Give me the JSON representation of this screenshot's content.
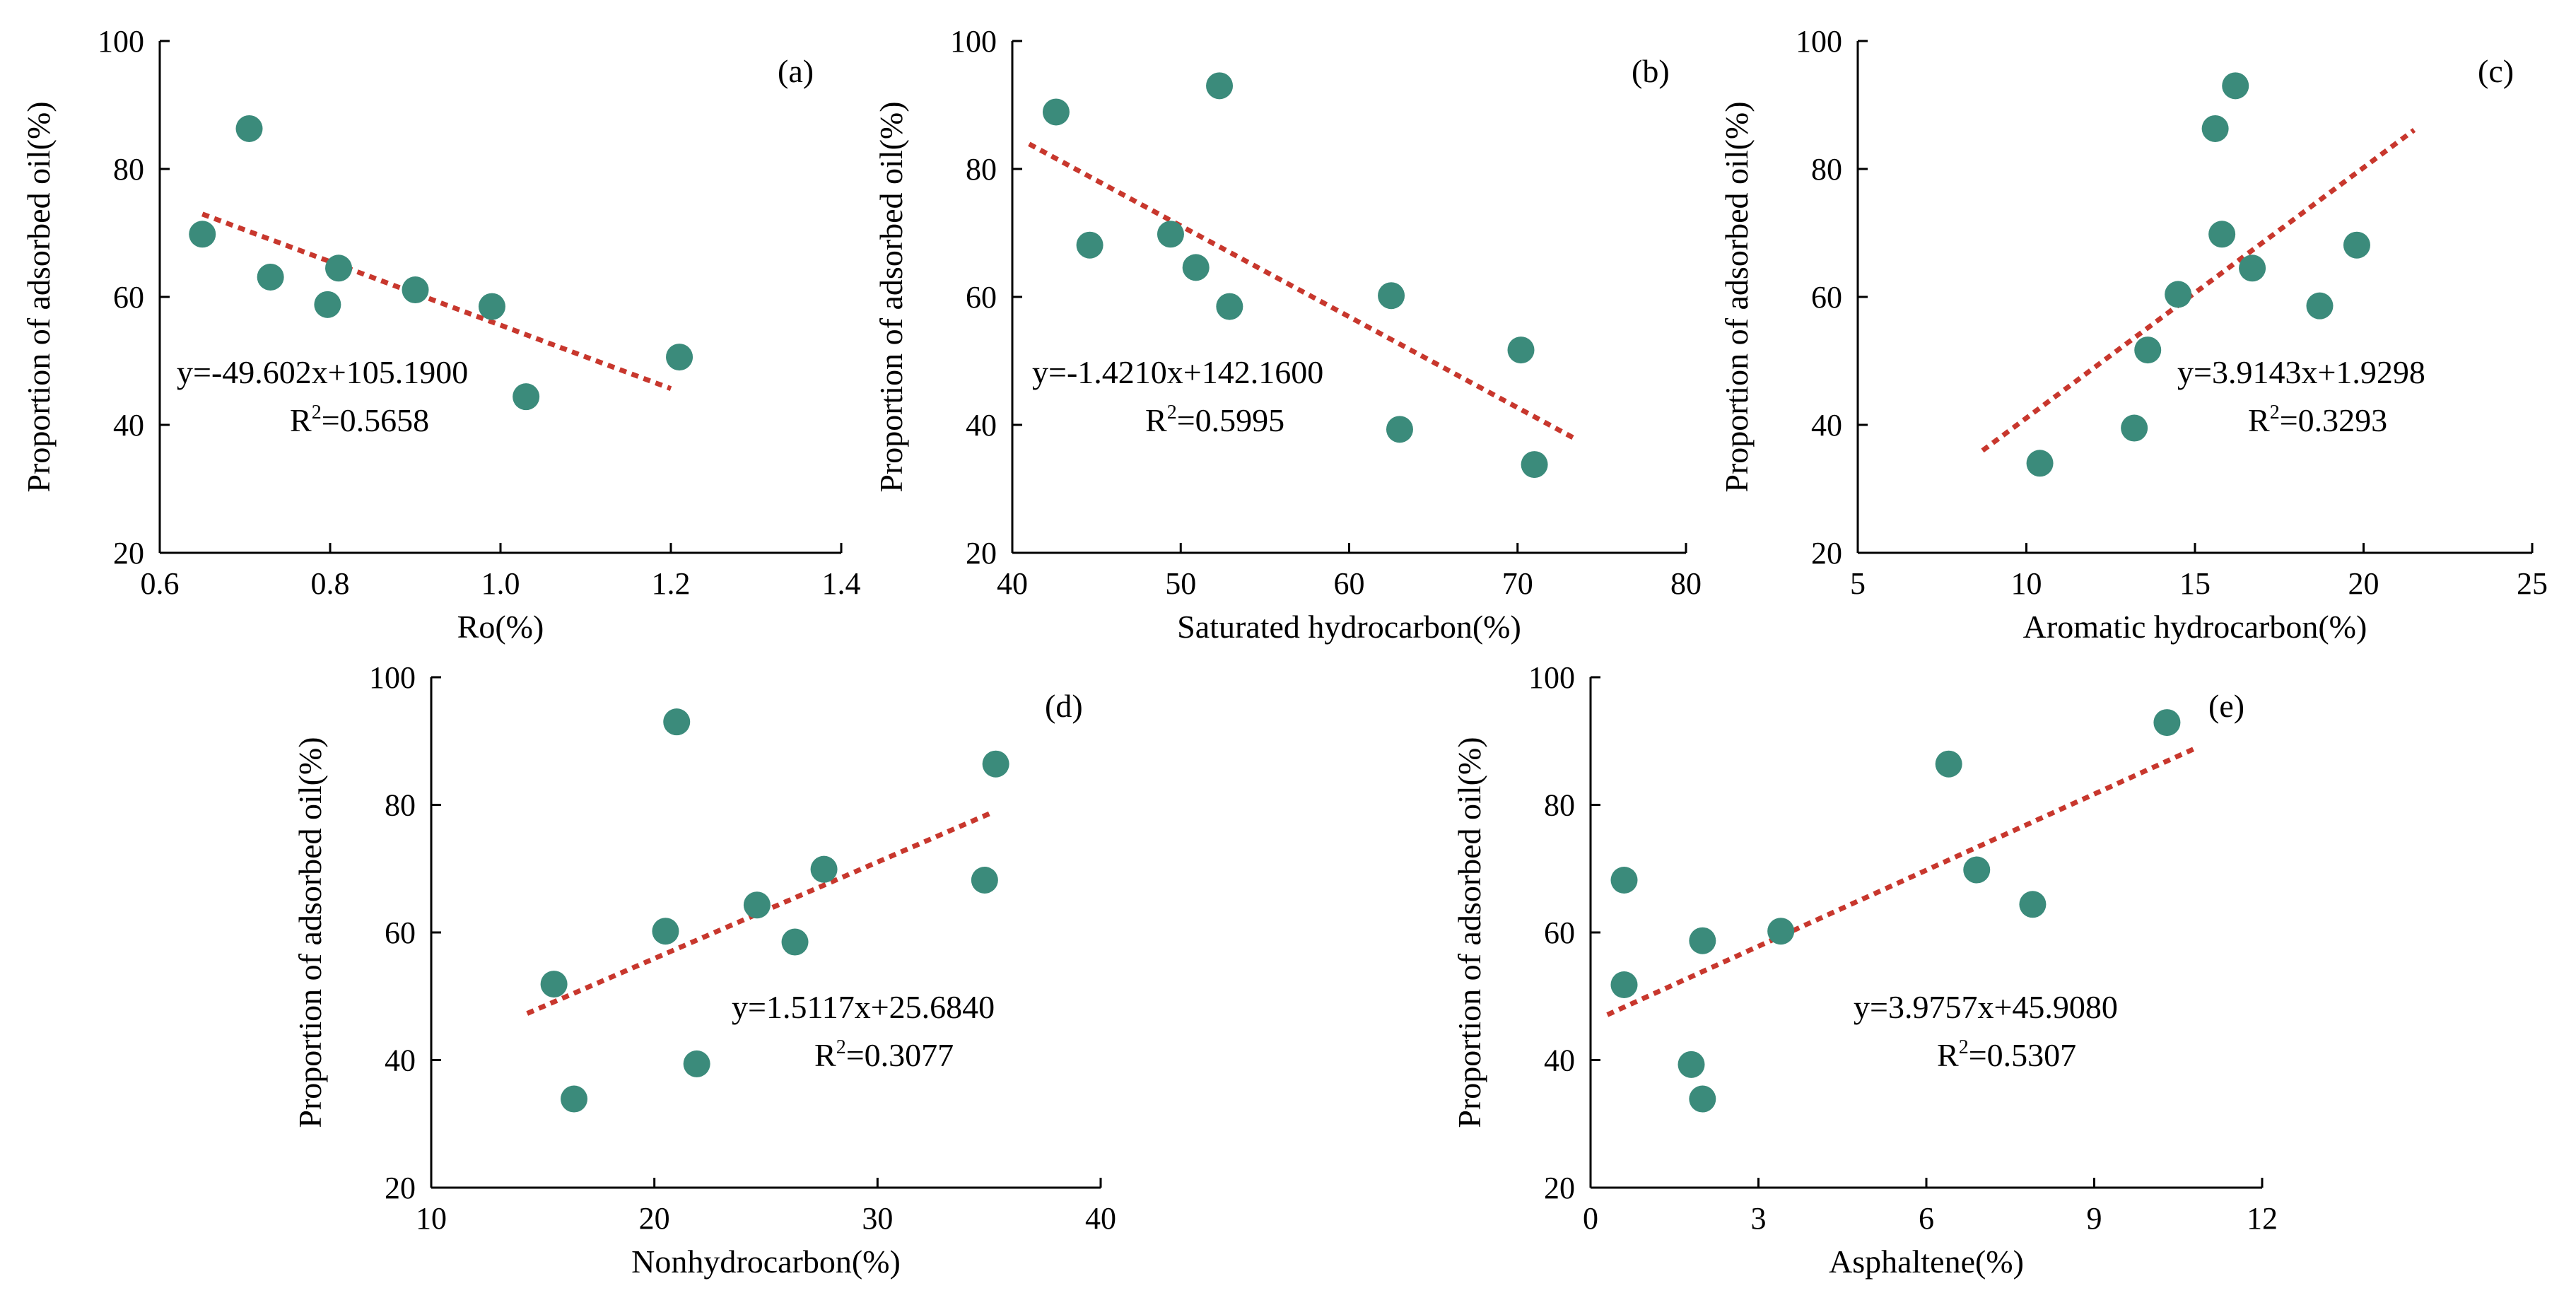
{
  "style": {
    "point_color": "#3b8b7b",
    "trend_color": "#c8372d",
    "axis_color": "#000000"
  },
  "chart_data": [
    {
      "type": "scatter",
      "panel_label": "(a)",
      "xlabel": "Ro(%)",
      "ylabel": "Proportion of adsorbed oil(%)",
      "xlim": [
        0.6,
        1.4
      ],
      "ylim": [
        20,
        100
      ],
      "xticks": [
        "0.6",
        "0.8",
        "1.0",
        "1.2",
        "1.4"
      ],
      "yticks": [
        "20",
        "40",
        "60",
        "80",
        "100"
      ],
      "points": [
        [
          0.65,
          69.8
        ],
        [
          0.705,
          86.3
        ],
        [
          0.73,
          63.1
        ],
        [
          0.797,
          58.8
        ],
        [
          0.81,
          64.5
        ],
        [
          0.9,
          61.1
        ],
        [
          0.99,
          58.5
        ],
        [
          1.03,
          44.4
        ],
        [
          1.21,
          50.6
        ]
      ],
      "trendline": {
        "slope": -49.602,
        "intercept": 105.19,
        "x_range": [
          0.65,
          1.2
        ],
        "style": "dashed"
      },
      "equation": "y=-49.602x+105.1900",
      "r2_label": "R",
      "r2_sup": "2",
      "r2_value": "=0.5658",
      "grid": false,
      "legend": "none"
    },
    {
      "type": "scatter",
      "panel_label": "(b)",
      "xlabel": "Saturated hydrocarbon(%)",
      "ylabel": "Proportion of adsorbed oil(%)",
      "xlim": [
        40,
        80
      ],
      "ylim": [
        20,
        100
      ],
      "xticks": [
        "40",
        "50",
        "60",
        "70",
        "80"
      ],
      "yticks": [
        "20",
        "40",
        "60",
        "80",
        "100"
      ],
      "points": [
        [
          42.6,
          88.9
        ],
        [
          44.6,
          68.1
        ],
        [
          49.4,
          69.8
        ],
        [
          50.9,
          64.6
        ],
        [
          52.3,
          93.0
        ],
        [
          52.9,
          58.5
        ],
        [
          62.5,
          60.2
        ],
        [
          63.0,
          39.3
        ],
        [
          70.2,
          51.7
        ],
        [
          71.0,
          33.8
        ]
      ],
      "trendline": {
        "slope": -1.421,
        "intercept": 142.16,
        "x_range": [
          41,
          73.5
        ],
        "style": "dashed"
      },
      "equation": "y=-1.4210x+142.1600",
      "r2_label": "R",
      "r2_sup": "2",
      "r2_value": "=0.5995",
      "grid": false,
      "legend": "none"
    },
    {
      "type": "scatter",
      "panel_label": "(c)",
      "xlabel": "Aromatic hydrocarbon(%)",
      "ylabel": "Proportion of adsorbed oil(%)",
      "xlim": [
        5,
        25
      ],
      "ylim": [
        20,
        100
      ],
      "xticks": [
        "5",
        "10",
        "15",
        "20",
        "25"
      ],
      "yticks": [
        "20",
        "40",
        "60",
        "80",
        "100"
      ],
      "points": [
        [
          10.4,
          34.0
        ],
        [
          13.2,
          39.5
        ],
        [
          13.6,
          51.7
        ],
        [
          14.5,
          60.4
        ],
        [
          15.6,
          86.3
        ],
        [
          15.8,
          69.8
        ],
        [
          16.2,
          93.0
        ],
        [
          16.7,
          64.5
        ],
        [
          18.7,
          58.6
        ],
        [
          19.8,
          68.1
        ]
      ],
      "trendline": {
        "slope": 3.9143,
        "intercept": 1.9298,
        "x_range": [
          8.7,
          21.5
        ],
        "style": "dashed"
      },
      "equation": "y=3.9143x+1.9298",
      "r2_label": "R",
      "r2_sup": "2",
      "r2_value": "=0.3293",
      "grid": false,
      "legend": "none"
    },
    {
      "type": "scatter",
      "panel_label": "(d)",
      "xlabel": "Nonhydrocarbon(%)",
      "ylabel": "Proportion of adsorbed oil(%)",
      "xlim": [
        10,
        40
      ],
      "ylim": [
        20,
        100
      ],
      "xticks": [
        "10",
        "20",
        "30",
        "40"
      ],
      "yticks": [
        "20",
        "40",
        "60",
        "80",
        "100"
      ],
      "points": [
        [
          15.5,
          51.9
        ],
        [
          16.4,
          33.9
        ],
        [
          20.5,
          60.2
        ],
        [
          21.0,
          93.0
        ],
        [
          21.9,
          39.4
        ],
        [
          24.6,
          64.3
        ],
        [
          26.3,
          58.5
        ],
        [
          27.6,
          69.9
        ],
        [
          34.8,
          68.2
        ],
        [
          35.3,
          86.4
        ]
      ],
      "trendline": {
        "slope": 1.5117,
        "intercept": 25.684,
        "x_range": [
          14.3,
          35.2
        ],
        "style": "dashed"
      },
      "equation": "y=1.5117x+25.6840",
      "r2_label": "R",
      "r2_sup": "2",
      "r2_value": "=0.3077",
      "grid": false,
      "legend": "none"
    },
    {
      "type": "scatter",
      "panel_label": "(e)",
      "xlabel": "Asphaltene(%)",
      "ylabel": "Proportion of adsorbed oil(%)",
      "xlim": [
        0,
        12
      ],
      "ylim": [
        20,
        100
      ],
      "xticks": [
        "0",
        "3",
        "6",
        "9",
        "12"
      ],
      "yticks": [
        "20",
        "40",
        "60",
        "80",
        "100"
      ],
      "points": [
        [
          0.6,
          68.2
        ],
        [
          0.6,
          51.8
        ],
        [
          1.8,
          39.3
        ],
        [
          2.0,
          58.7
        ],
        [
          2.0,
          33.9
        ],
        [
          3.4,
          60.2
        ],
        [
          6.4,
          86.4
        ],
        [
          6.9,
          69.8
        ],
        [
          7.9,
          64.4
        ],
        [
          10.3,
          92.9
        ]
      ],
      "trendline": {
        "slope": 3.9757,
        "intercept": 45.908,
        "x_range": [
          0.3,
          10.8
        ],
        "style": "dashed"
      },
      "equation": "y=3.9757x+45.9080",
      "r2_label": "R",
      "r2_sup": "2",
      "r2_value": "=0.5307",
      "grid": false,
      "legend": "none"
    }
  ]
}
